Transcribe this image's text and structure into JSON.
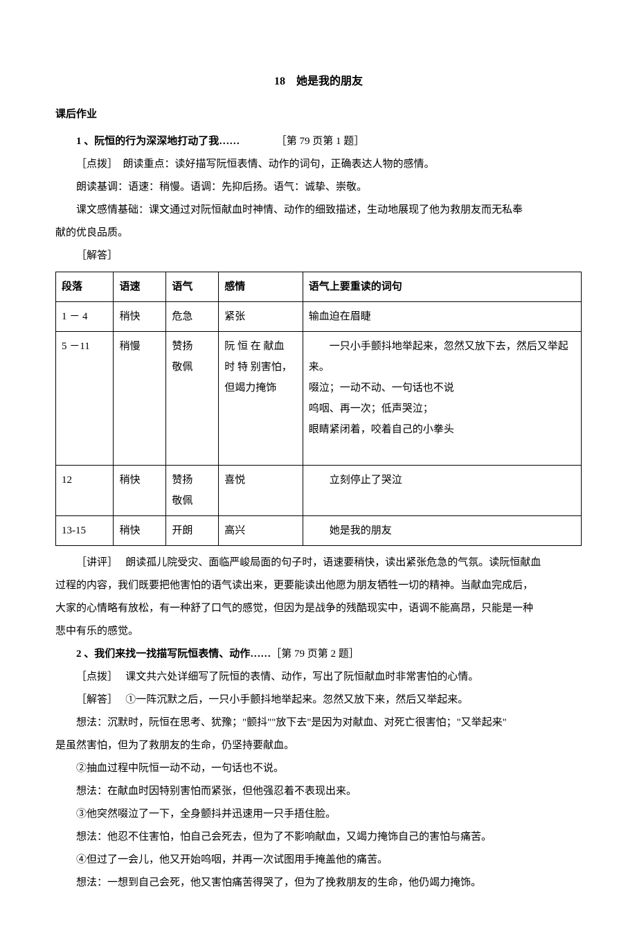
{
  "title": "18　她是我的朋友",
  "section_header": "课后作业",
  "q1": {
    "label": "1 、阮恒的行为深深地打动了我……",
    "ref": "［第 79 页第 1 题］",
    "tip_tag": "［点拨］",
    "tip_text": "　朗读重点：读好描写阮恒表情、动作的词句，正确表达人物的感情。",
    "base1": "朗读基调：语速：稍慢。语调：先抑后扬。语气：诚挚、崇敬。",
    "base2_a": "课文感情基础：课文通过对阮恒献血时神情、动作的细致描述，生动地展现了他为救朋友而无私奉",
    "base2_b": "献的优良品质。",
    "answer_tag": "［解答］"
  },
  "table": {
    "headers": [
      "段落",
      "语速",
      "语气",
      "感情",
      "语气上要重读的词句"
    ],
    "rows": [
      {
        "cells": [
          "1 － 4",
          "稍快",
          "危急",
          "紧张",
          "输血迫在眉睫"
        ]
      },
      {
        "cells": [
          "5 －11",
          "稍慢",
          "赞扬\n敬佩",
          "阮 恒 在 献血 时 特 别害怕，但竭力掩饰",
          "　　一只小手颤抖地举起来，忽然又放下去，然后又举起来。\n啜泣；一动不动、一句话也不说\n呜咽、再一次；低声哭泣；\n眼睛紧闭着，咬着自己的小拳头\n　"
        ]
      },
      {
        "cells": [
          "12",
          "稍快",
          "赞扬\n敬佩",
          "喜悦",
          "　　立刻停止了哭泣"
        ]
      },
      {
        "cells": [
          "13-15",
          "稍快",
          "开朗",
          "高兴",
          "　　她是我的朋友"
        ]
      }
    ]
  },
  "comment": {
    "tag": "［讲评］",
    "text_a": "　 朗读孤儿院受灾、面临严峻局面的句子时，语速要稍快，读出紧张危急的气氛。读阮恒献血",
    "text_b": "过程的内容，我们既要把他害怕的语气读出来，更要能读出他愿为朋友牺牲一切的精神。当献血完成后，",
    "text_c": "大家的心情略有放松，有一种舒了口气的感觉，但因为是战争的残酷现实中，语调不能高昂，只能是一种",
    "text_d": "悲中有乐的感觉。"
  },
  "q2": {
    "label": "2 、我们来找一找描写阮恒表情、动作……",
    "ref": "［第 79 页第 2 题］",
    "tip_tag": "［点拨］",
    "tip_text": "　 课文共六处详细写了阮恒的表情、动作，写出了阮恒献血时非常害怕的心情。",
    "ans_tag": "［解答］",
    "ans1": "　 ①一阵沉默之后，一只小手颤抖地举起来。忽然又放下来，然后又举起来。",
    "think1_a": "想法：沉默时，阮恒在思考、犹豫；\"颤抖\"\"放下去\"是因为对献血、对死亡很害怕；\"又举起来\"",
    "think1_b": "是虽然害怕，但为了救朋友的生命，仍坚持要献血。",
    "ans2": "②抽血过程中阮恒一动不动，一句话也不说。",
    "think2": "想法：在献血时因特别害怕而紧张，但他强忍着不表现出来。",
    "ans3": "③他突然啜泣了一下，全身颤抖并迅速用一只手捂住脸。",
    "think3": "想法：他忍不住害怕，怕自己会死去，但为了不影响献血，又竭力掩饰自己的害怕与痛苦。",
    "ans4": "④但过了一会儿，他又开始呜咽，并再一次试图用手掩盖他的痛苦。",
    "think4": "想法：一想到自己会死，他又害怕痛苦得哭了，但为了挽救朋友的生命，他仍竭力掩饰。"
  }
}
